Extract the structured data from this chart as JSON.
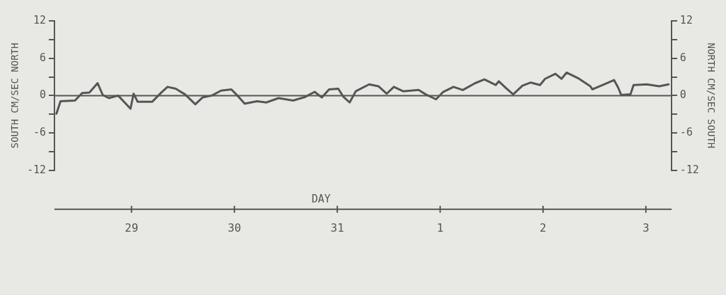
{
  "chart_data": {
    "type": "line",
    "xlabel": "DAY",
    "ylabel": "SOUTH CM/SEC NORTH",
    "y2label": "NORTH CM/SEC SOUTH",
    "xlim": [
      "--05-28T06:00",
      "--06-03T06:00"
    ],
    "xticks": [
      {
        "value": "--05-29",
        "label": "29"
      },
      {
        "value": "--05-30",
        "label": "30"
      },
      {
        "value": "--05-31",
        "label": "31"
      },
      {
        "value": "--06-01",
        "label": "1"
      },
      {
        "value": "--06-02",
        "label": "2"
      },
      {
        "value": "--06-03",
        "label": "3"
      }
    ],
    "ylim": [
      -12,
      12
    ],
    "yticks": [
      -12,
      {
        "value": -9,
        "label": null
      },
      -6,
      {
        "value": -3,
        "label": null
      },
      0,
      {
        "value": 3,
        "label": null
      },
      6,
      {
        "value": 9,
        "label": null
      },
      12
    ],
    "y2lim": [
      -12,
      12
    ],
    "y2ticks": [
      -12,
      {
        "value": -9,
        "label": null
      },
      -6,
      {
        "value": -3,
        "label": null
      },
      0,
      {
        "value": 3,
        "label": null
      },
      6,
      {
        "value": 9,
        "label": null
      },
      12
    ],
    "ref_lines": [
      {
        "axis": "y",
        "value": 0,
        "color": "#555555"
      }
    ],
    "grid": false,
    "legend": false,
    "marker": "none",
    "line_style": "solid",
    "series": [
      {
        "color": "#555555",
        "x": [
          "--05-28T06:29",
          "--05-28T07:26",
          "--05-28T10:48",
          "--05-28T12:29",
          "--05-28T14:10",
          "--05-28T16:05",
          "--05-28T17:17",
          "--05-28T18:43",
          "--05-28T20:53",
          "--05-28T23:46",
          "--05-29T00:29",
          "--05-29T01:26",
          "--05-29T04:48",
          "--05-29T06:58",
          "--05-29T08:24",
          "--05-29T10:19",
          "--05-29T12:29",
          "--05-29T14:53",
          "--05-29T16:34",
          "--05-29T18:43",
          "--05-29T20:53",
          "--05-29T23:17",
          "--05-30T00:43",
          "--05-30T02:24",
          "--05-30T05:17",
          "--05-30T07:26",
          "--05-30T10:19",
          "--05-30T13:41",
          "--05-30T16:34",
          "--05-30T18:43",
          "--05-30T20:24",
          "--05-30T22:05",
          "--05-31T00:14",
          "--05-31T01:26",
          "--05-31T02:53",
          "--05-31T04:19",
          "--05-31T07:26",
          "--05-31T09:36",
          "--05-31T11:31",
          "--05-31T13:12",
          "--05-31T15:22",
          "--05-31T18:58",
          "--05-31T20:38",
          "--05-31T23:02",
          "--06-01T00:43",
          "--06-01T03:07",
          "--06-01T05:17",
          "--06-01T08:10",
          "--06-01T10:19",
          "--06-01T12:58",
          "--06-01T13:41",
          "--06-01T15:22",
          "--06-01T17:02",
          "--06-01T19:12",
          "--06-01T21:07",
          "--06-01T23:17",
          "--06-02T00:29",
          "--06-02T02:53",
          "--06-02T04:19",
          "--06-02T05:31",
          "--06-02T08:10",
          "--06-02T11:02",
          "--06-02T11:31",
          "--06-02T13:55",
          "--06-02T16:34",
          "--06-02T17:31",
          "--06-02T18:14",
          "--06-02T20:24",
          "--06-02T21:07",
          "--06-03T00:14",
          "--06-03T03:07",
          "--06-03T05:17"
        ],
        "values": [
          -2.9,
          -0.9,
          -0.8,
          0.4,
          0.5,
          2.0,
          0.1,
          -0.4,
          0,
          -2.1,
          0.3,
          -1,
          -1,
          0.5,
          1.4,
          1.1,
          0.2,
          -1.4,
          -0.3,
          0,
          0.8,
          1.0,
          0,
          -1.3,
          -0.9,
          -1.1,
          -0.4,
          -0.8,
          -0.2,
          0.6,
          -0.3,
          1.0,
          1.1,
          -0.2,
          -1.1,
          0.7,
          1.8,
          1.5,
          0.3,
          1.4,
          0.7,
          0.9,
          0.2,
          -0.6,
          0.6,
          1.4,
          0.9,
          2.0,
          2.6,
          1.7,
          2.3,
          1.2,
          0.2,
          1.6,
          2.1,
          1.7,
          2.7,
          3.5,
          2.7,
          3.7,
          2.8,
          1.5,
          1.0,
          1.7,
          2.5,
          1.3,
          0.1,
          0.2,
          1.7,
          1.8,
          1.5,
          1.8
        ]
      }
    ]
  }
}
